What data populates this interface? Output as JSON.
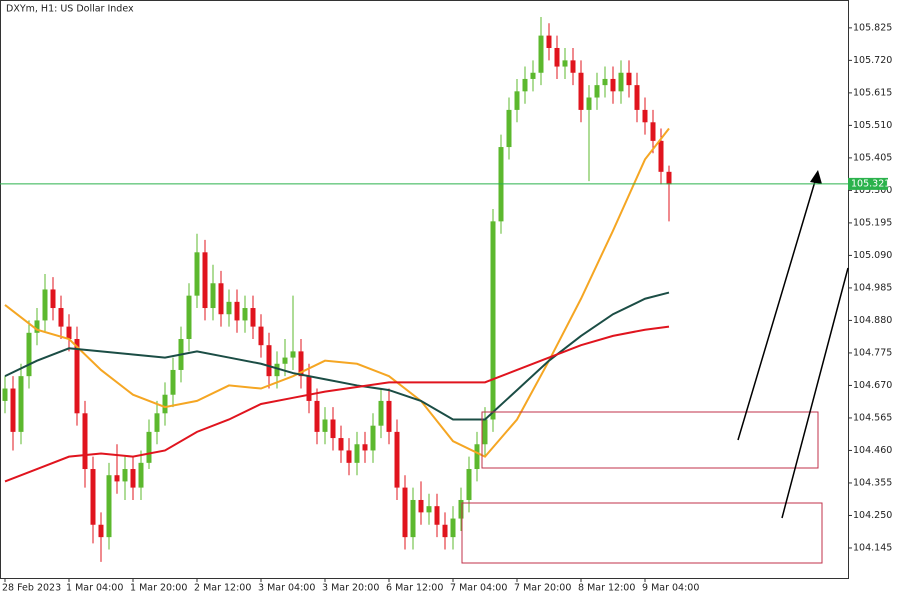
{
  "chart_data": {
    "type": "candlestick",
    "title": "DXYm, H1:  US Dollar Index",
    "xlim": [
      -0.625,
      105.375
    ],
    "xticks": [
      {
        "value": 0,
        "label": "28 Feb 2023"
      },
      {
        "value": 8,
        "label": "1 Mar 04:00"
      },
      {
        "value": 16,
        "label": "1 Mar 20:00"
      },
      {
        "value": 24,
        "label": "2 Mar 12:00"
      },
      {
        "value": 32,
        "label": "3 Mar 04:00"
      },
      {
        "value": 40,
        "label": "3 Mar 20:00"
      },
      {
        "value": 48,
        "label": "6 Mar 12:00"
      },
      {
        "value": 56,
        "label": "7 Mar 04:00"
      },
      {
        "value": 64,
        "label": "7 Mar 20:00"
      },
      {
        "value": 72,
        "label": "8 Mar 12:00"
      },
      {
        "value": 80,
        "label": "9 Mar 04:00"
      }
    ],
    "ylim": [
      104.048,
      105.915
    ],
    "yticks": [
      105.825,
      {
        "value": 105.72,
        "label": "105.720"
      },
      105.615,
      {
        "value": 105.51,
        "label": "105.510"
      },
      105.405,
      {
        "value": 105.3,
        "label": "105.300"
      },
      105.195,
      {
        "value": 105.09,
        "label": "105.090"
      },
      104.985,
      {
        "value": 104.88,
        "label": "104.880"
      },
      104.775,
      {
        "value": 104.67,
        "label": "104.670"
      },
      104.565,
      {
        "value": 104.46,
        "label": "104.460"
      },
      104.355,
      {
        "value": 104.25,
        "label": "104.250"
      },
      104.145
    ],
    "up_color": "#5cb82e",
    "down_color": "#e0141e",
    "open": [
      104.62,
      104.66,
      104.52,
      104.7,
      104.84,
      104.88,
      104.98,
      104.92,
      104.86,
      104.82,
      104.58,
      104.4,
      104.22,
      104.18,
      104.38,
      104.36,
      104.4,
      104.34,
      104.42,
      104.52,
      104.58,
      104.64,
      104.72,
      104.82,
      104.96,
      105.1,
      104.92,
      105.0,
      104.9,
      104.94,
      104.88,
      104.92,
      104.86,
      104.8,
      104.7,
      104.74,
      104.76,
      104.78,
      104.7,
      104.62,
      104.52,
      104.56,
      104.5,
      104.46,
      104.42,
      104.48,
      104.46,
      104.54,
      104.62,
      104.52,
      104.34,
      104.18,
      104.3,
      104.26,
      104.28,
      104.22,
      104.18,
      104.24,
      104.3,
      104.4,
      104.48,
      104.56,
      105.2,
      105.44,
      105.56,
      105.62,
      105.66,
      105.68,
      105.8,
      105.76,
      105.7,
      105.72,
      105.68,
      105.56,
      105.6,
      105.64,
      105.66,
      105.62,
      105.68,
      105.64,
      105.56,
      105.52,
      105.46,
      105.36
    ],
    "high": [
      104.7,
      104.7,
      104.74,
      104.88,
      104.92,
      105.03,
      105.02,
      104.96,
      104.9,
      104.86,
      104.62,
      104.44,
      104.26,
      104.42,
      104.48,
      104.44,
      104.44,
      104.46,
      104.56,
      104.62,
      104.68,
      104.76,
      104.86,
      105.0,
      105.16,
      105.14,
      105.06,
      105.04,
      104.98,
      104.98,
      104.96,
      104.96,
      104.9,
      104.84,
      104.78,
      104.82,
      104.96,
      104.82,
      104.74,
      104.66,
      104.6,
      104.6,
      104.54,
      104.5,
      104.52,
      104.52,
      104.58,
      104.66,
      104.66,
      104.56,
      104.38,
      104.34,
      104.36,
      104.32,
      104.32,
      104.26,
      104.28,
      104.34,
      104.44,
      104.52,
      104.6,
      105.24,
      105.48,
      105.6,
      105.66,
      105.7,
      105.72,
      105.86,
      105.84,
      105.8,
      105.76,
      105.76,
      105.72,
      105.64,
      105.68,
      105.7,
      105.7,
      105.72,
      105.72,
      105.68,
      105.6,
      105.56,
      105.5,
      105.38
    ],
    "low": [
      104.58,
      104.46,
      104.48,
      104.66,
      104.8,
      104.84,
      104.88,
      104.82,
      104.78,
      104.54,
      104.34,
      104.16,
      104.1,
      104.14,
      104.32,
      104.3,
      104.3,
      104.3,
      104.4,
      104.48,
      104.54,
      104.6,
      104.68,
      104.78,
      104.92,
      104.88,
      104.88,
      104.86,
      104.86,
      104.84,
      104.84,
      104.82,
      104.76,
      104.66,
      104.66,
      104.7,
      104.72,
      104.66,
      104.58,
      104.48,
      104.48,
      104.46,
      104.42,
      104.38,
      104.38,
      104.42,
      104.42,
      104.5,
      104.48,
      104.3,
      104.14,
      104.14,
      104.22,
      104.22,
      104.18,
      104.14,
      104.14,
      104.2,
      104.26,
      104.36,
      104.44,
      104.52,
      105.16,
      105.4,
      105.52,
      105.58,
      105.62,
      105.64,
      105.72,
      105.66,
      105.66,
      105.64,
      105.52,
      105.33,
      105.56,
      105.6,
      105.58,
      105.58,
      105.6,
      105.52,
      105.48,
      105.42,
      105.32,
      105.2
    ],
    "close": [
      104.66,
      104.52,
      104.7,
      104.84,
      104.88,
      104.98,
      104.92,
      104.86,
      104.82,
      104.58,
      104.4,
      104.22,
      104.18,
      104.38,
      104.36,
      104.4,
      104.34,
      104.42,
      104.52,
      104.58,
      104.64,
      104.72,
      104.82,
      104.96,
      105.1,
      104.92,
      105.0,
      104.9,
      104.94,
      104.88,
      104.92,
      104.86,
      104.8,
      104.7,
      104.74,
      104.76,
      104.78,
      104.7,
      104.62,
      104.52,
      104.56,
      104.5,
      104.46,
      104.42,
      104.48,
      104.46,
      104.54,
      104.62,
      104.52,
      104.34,
      104.18,
      104.3,
      104.26,
      104.28,
      104.22,
      104.18,
      104.24,
      104.3,
      104.4,
      104.48,
      104.56,
      105.2,
      105.44,
      105.56,
      105.62,
      105.66,
      105.68,
      105.8,
      105.76,
      105.7,
      105.72,
      105.68,
      105.56,
      105.6,
      105.64,
      105.66,
      105.62,
      105.68,
      105.64,
      105.56,
      105.52,
      105.46,
      105.36,
      105.32
    ],
    "lines": [
      {
        "color": "#f5a623",
        "x": [
          0,
          4,
          8,
          12,
          16,
          20,
          24,
          28,
          32,
          36,
          40,
          44,
          48,
          52,
          56,
          60,
          64,
          68,
          72,
          76,
          80,
          83
        ],
        "values": [
          104.93,
          104.85,
          104.82,
          104.72,
          104.64,
          104.6,
          104.62,
          104.67,
          104.66,
          104.7,
          104.75,
          104.74,
          104.7,
          104.62,
          104.49,
          104.44,
          104.56,
          104.75,
          104.95,
          105.17,
          105.4,
          105.5
        ]
      },
      {
        "color": "#1b4d45",
        "x": [
          0,
          4,
          8,
          12,
          16,
          20,
          24,
          28,
          32,
          36,
          40,
          44,
          48,
          52,
          56,
          60,
          64,
          68,
          72,
          76,
          80,
          83
        ],
        "values": [
          104.7,
          104.75,
          104.79,
          104.78,
          104.77,
          104.76,
          104.78,
          104.76,
          104.74,
          104.71,
          104.69,
          104.67,
          104.655,
          104.62,
          104.56,
          104.56,
          104.655,
          104.75,
          104.83,
          104.9,
          104.95,
          104.97
        ]
      },
      {
        "color": "#e0141e",
        "x": [
          0,
          4,
          8,
          12,
          16,
          20,
          24,
          28,
          32,
          36,
          40,
          44,
          48,
          52,
          56,
          60,
          64,
          68,
          72,
          76,
          80,
          83
        ],
        "values": [
          104.36,
          104.4,
          104.44,
          104.45,
          104.44,
          104.46,
          104.52,
          104.56,
          104.61,
          104.63,
          104.65,
          104.665,
          104.68,
          104.68,
          104.68,
          104.68,
          104.72,
          104.76,
          104.8,
          104.83,
          104.85,
          104.86
        ]
      }
    ],
    "current_price": 105.321,
    "current_price_color": "#2bb24c"
  }
}
